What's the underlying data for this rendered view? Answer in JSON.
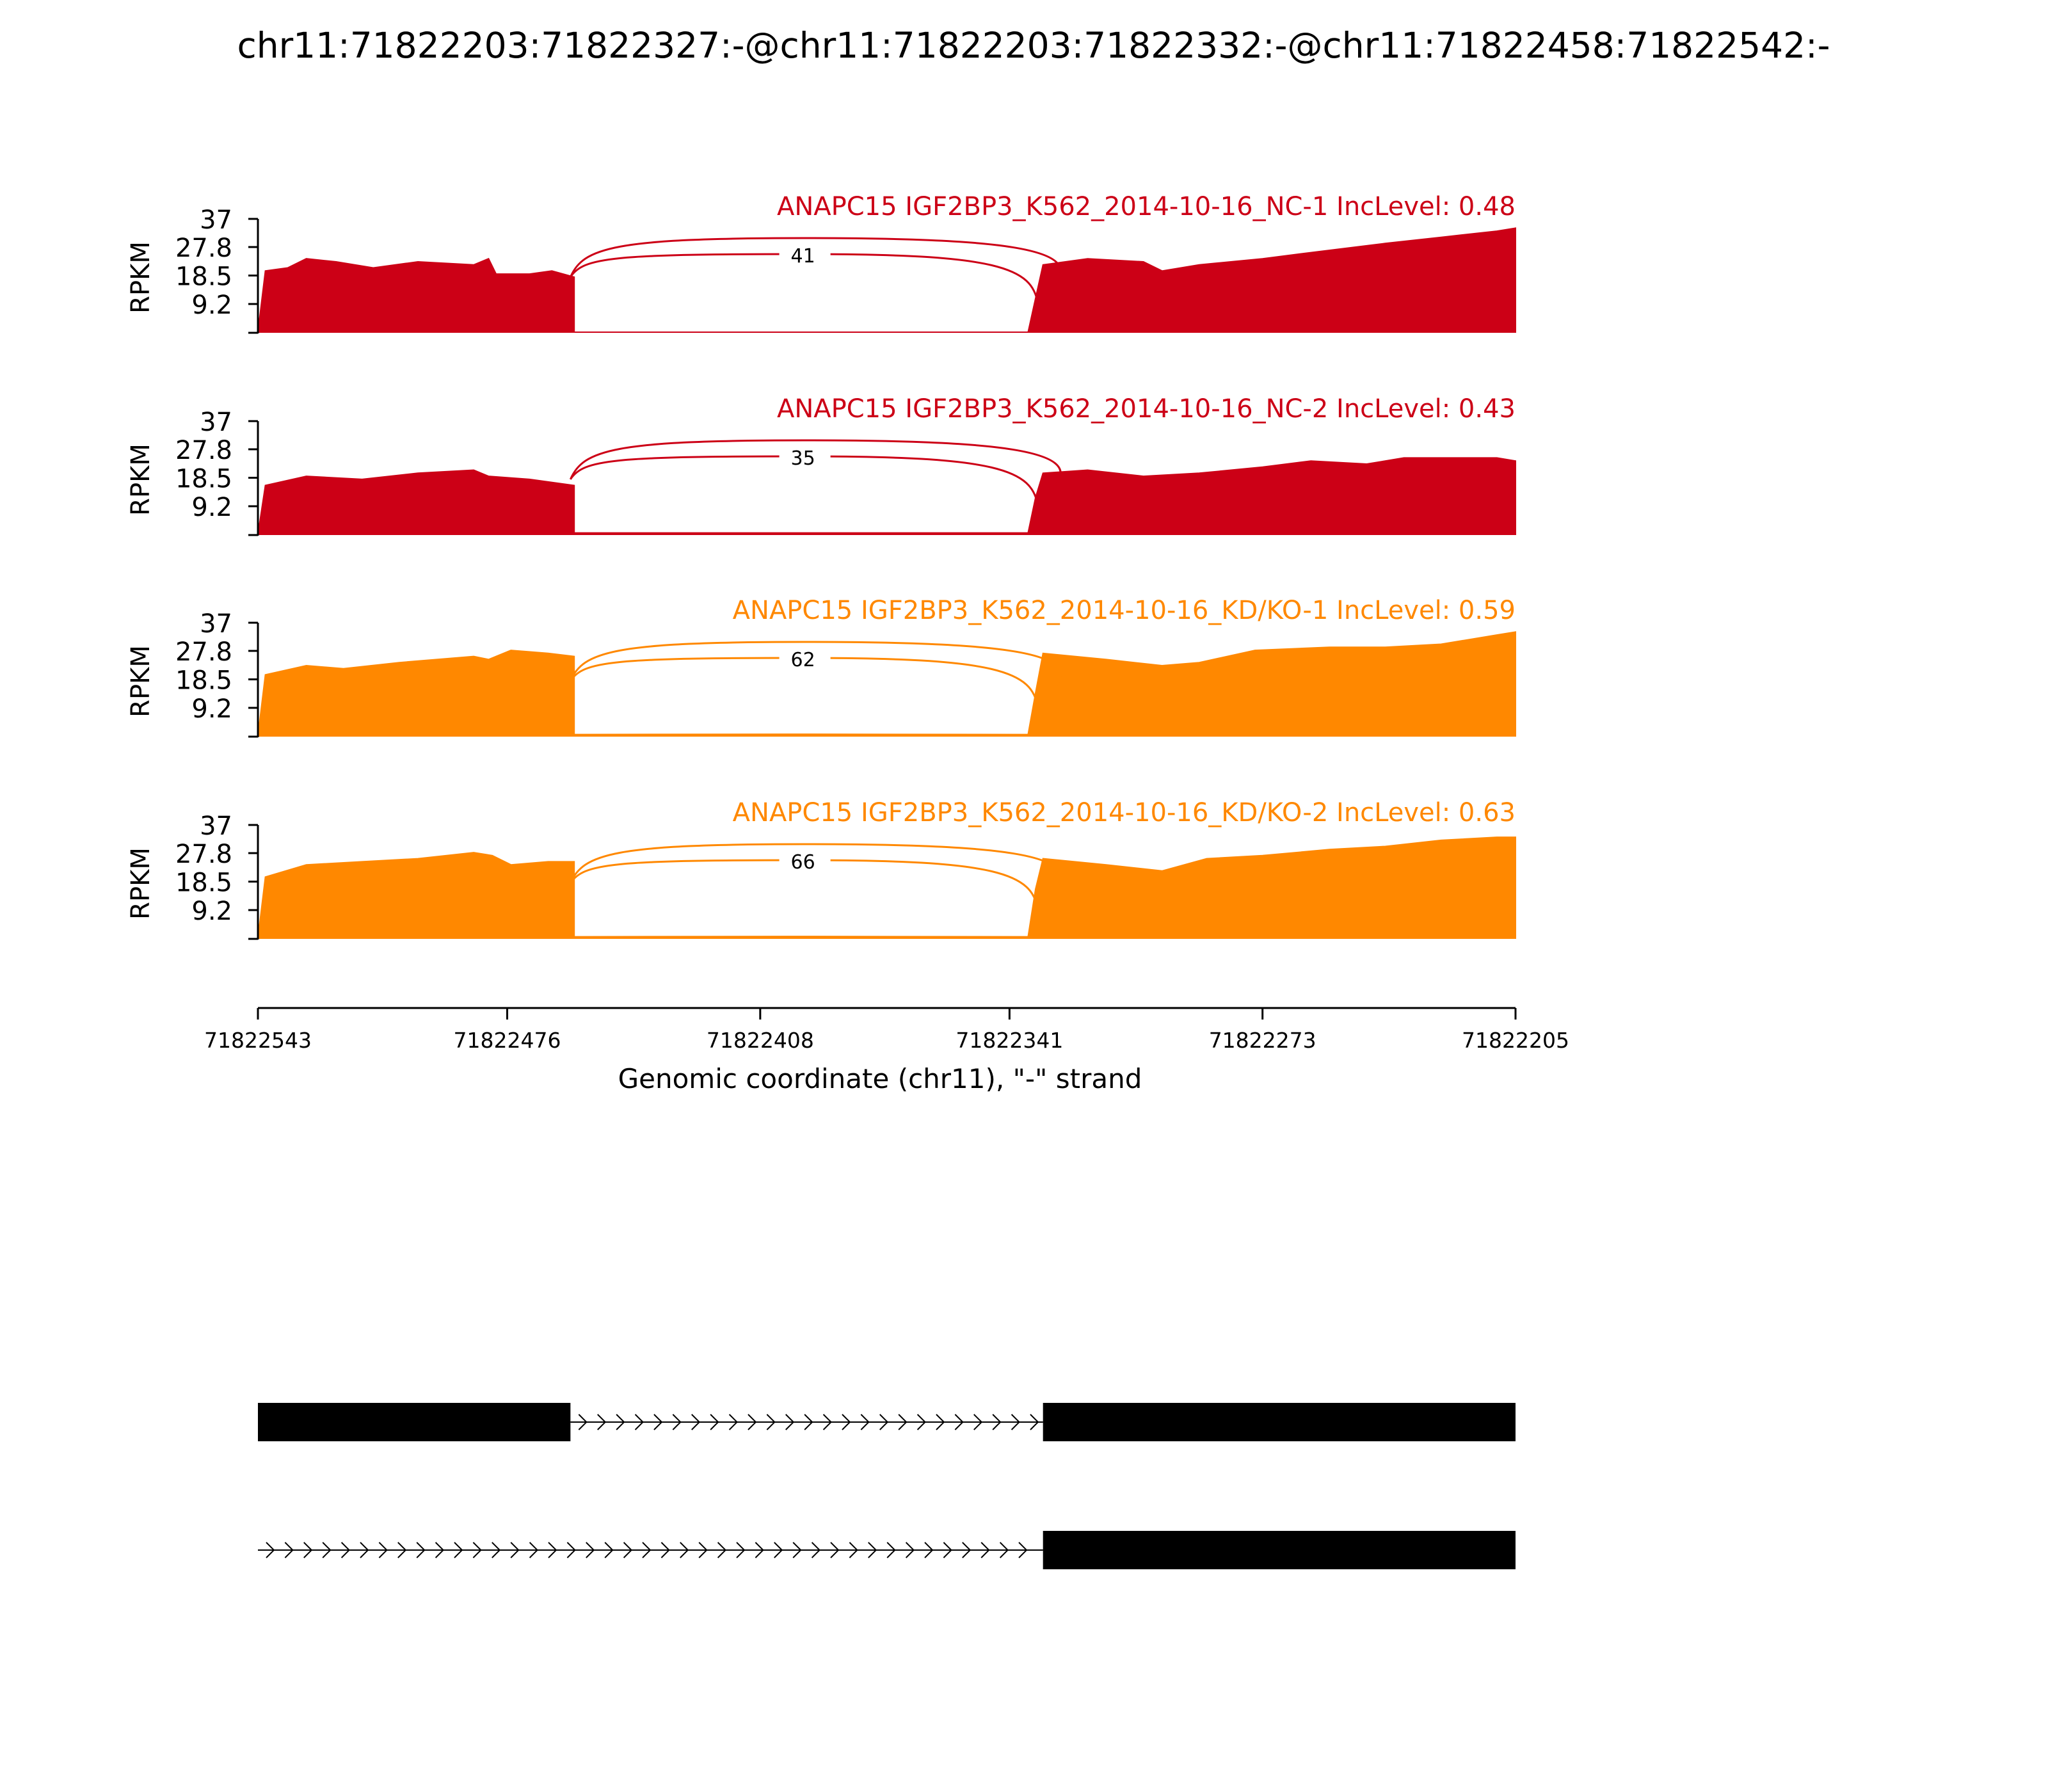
{
  "title": "chr11:71822203:71822327:-@chr11:71822203:71822332:-@chr11:71822458:71822542:-",
  "colors": {
    "nc": "#cc0016",
    "kd": "#ff8800",
    "axis": "#000000",
    "gene": "#000000"
  },
  "chart_data": {
    "type": "area",
    "title": "chr11:71822203:71822327:-@chr11:71822203:71822332:-@chr11:71822458:71822542:-",
    "xlabel": "Genomic coordinate (chr11), \"-\" strand",
    "ylabel": "RPKM",
    "x_ticks": [
      "71822543",
      "71822476",
      "71822408",
      "71822341",
      "71822273",
      "71822205"
    ],
    "xlim": [
      71822543,
      71822205
    ],
    "y_ticks": [
      "37",
      "27.8",
      "18.5",
      "9.2"
    ],
    "ylim": [
      0,
      37
    ],
    "series": [
      {
        "name": "ANAPC15 IGF2BP3_K562_2014-10-16_NC-1 IncLevel: 0.48",
        "color": "#cc0016",
        "junction_count": "41",
        "hidden_count": "",
        "coverage": [
          [
            71822543,
            0
          ],
          [
            71822541,
            20
          ],
          [
            71822535,
            21
          ],
          [
            71822530,
            24
          ],
          [
            71822522,
            23
          ],
          [
            71822512,
            21
          ],
          [
            71822500,
            23
          ],
          [
            71822485,
            22
          ],
          [
            71822481,
            24
          ],
          [
            71822479,
            19
          ],
          [
            71822470,
            19
          ],
          [
            71822464,
            20
          ],
          [
            71822458,
            18
          ],
          [
            71822458,
            0
          ],
          [
            71822336,
            0
          ],
          [
            71822334,
            11
          ],
          [
            71822332,
            22
          ],
          [
            71822320,
            24
          ],
          [
            71822305,
            23
          ],
          [
            71822300,
            20
          ],
          [
            71822290,
            22
          ],
          [
            71822273,
            24
          ],
          [
            71822260,
            26
          ],
          [
            71822240,
            29
          ],
          [
            71822225,
            31
          ],
          [
            71822210,
            33
          ],
          [
            71822205,
            34
          ],
          [
            71822205,
            0
          ]
        ]
      },
      {
        "name": "ANAPC15 IGF2BP3_K562_2014-10-16_NC-2 IncLevel: 0.43",
        "color": "#cc0016",
        "junction_count": "35",
        "hidden_count": "",
        "coverage": [
          [
            71822543,
            0
          ],
          [
            71822541,
            16
          ],
          [
            71822530,
            19
          ],
          [
            71822515,
            18
          ],
          [
            71822500,
            20
          ],
          [
            71822485,
            21
          ],
          [
            71822481,
            19
          ],
          [
            71822470,
            18
          ],
          [
            71822458,
            16
          ],
          [
            71822458,
            0.5
          ],
          [
            71822400,
            0.5
          ],
          [
            71822336,
            0.5
          ],
          [
            71822334,
            12
          ],
          [
            71822332,
            20
          ],
          [
            71822320,
            21
          ],
          [
            71822305,
            19
          ],
          [
            71822290,
            20
          ],
          [
            71822273,
            22
          ],
          [
            71822260,
            24
          ],
          [
            71822245,
            23
          ],
          [
            71822235,
            25
          ],
          [
            71822210,
            25
          ],
          [
            71822205,
            24
          ],
          [
            71822205,
            0
          ]
        ]
      },
      {
        "name": "ANAPC15 IGF2BP3_K562_2014-10-16_KD/KO-1 IncLevel: 0.59",
        "color": "#ff8800",
        "junction_count": "62",
        "hidden_count": "",
        "coverage": [
          [
            71822543,
            0
          ],
          [
            71822541,
            20
          ],
          [
            71822530,
            23
          ],
          [
            71822520,
            22
          ],
          [
            71822505,
            24
          ],
          [
            71822485,
            26
          ],
          [
            71822481,
            25
          ],
          [
            71822475,
            28
          ],
          [
            71822465,
            27
          ],
          [
            71822458,
            26
          ],
          [
            71822458,
            0.5
          ],
          [
            71822400,
            0.6
          ],
          [
            71822336,
            0.5
          ],
          [
            71822334,
            14
          ],
          [
            71822332,
            27
          ],
          [
            71822315,
            25
          ],
          [
            71822300,
            23
          ],
          [
            71822290,
            24
          ],
          [
            71822275,
            28
          ],
          [
            71822255,
            29
          ],
          [
            71822240,
            29
          ],
          [
            71822225,
            30
          ],
          [
            71822210,
            33
          ],
          [
            71822205,
            34
          ],
          [
            71822205,
            0
          ]
        ]
      },
      {
        "name": "ANAPC15 IGF2BP3_K562_2014-10-16_KD/KO-2 IncLevel: 0.63",
        "color": "#ff8800",
        "junction_count": "66",
        "hidden_count": "",
        "coverage": [
          [
            71822543,
            0
          ],
          [
            71822541,
            20
          ],
          [
            71822530,
            24
          ],
          [
            71822515,
            25
          ],
          [
            71822500,
            26
          ],
          [
            71822485,
            28
          ],
          [
            71822480,
            27
          ],
          [
            71822475,
            24
          ],
          [
            71822465,
            25
          ],
          [
            71822458,
            25
          ],
          [
            71822458,
            0.5
          ],
          [
            71822400,
            0.6
          ],
          [
            71822336,
            0.5
          ],
          [
            71822334,
            16
          ],
          [
            71822332,
            26
          ],
          [
            71822315,
            24
          ],
          [
            71822300,
            22
          ],
          [
            71822288,
            26
          ],
          [
            71822273,
            27
          ],
          [
            71822255,
            29
          ],
          [
            71822240,
            30
          ],
          [
            71822225,
            32
          ],
          [
            71822210,
            33
          ],
          [
            71822205,
            33
          ],
          [
            71822205,
            0
          ]
        ]
      }
    ],
    "gene_models": [
      {
        "exons": [
          [
            71822543,
            71822459
          ],
          [
            71822332,
            71822205
          ]
        ]
      },
      {
        "exons": [
          [
            71822332,
            71822205
          ]
        ]
      }
    ]
  }
}
